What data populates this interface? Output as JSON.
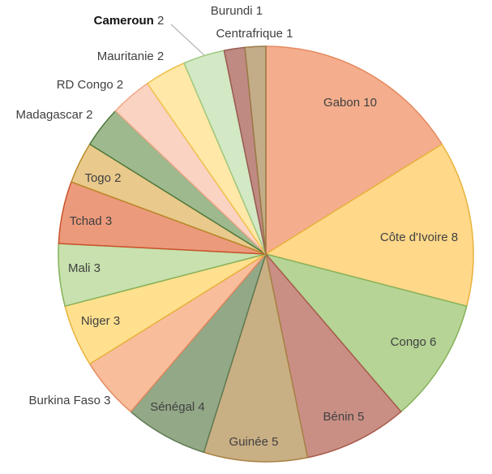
{
  "chart_data": {
    "type": "pie",
    "title": "",
    "start_angle_deg": 0,
    "direction": "clockwise",
    "slices": [
      {
        "label": "Gabon",
        "value": 10,
        "display": "10",
        "color": "#F4AE8E",
        "stroke": "#E58A5E"
      },
      {
        "label": "Côte d'Ivoire",
        "value": 8,
        "display": "8",
        "color": "#FFD88A",
        "stroke": "#E9B23C"
      },
      {
        "label": "Congo",
        "value": 6,
        "display": "6",
        "color": "#B5D495",
        "stroke": "#86B15A"
      },
      {
        "label": "Bénin",
        "value": 5,
        "display": "5",
        "color": "#C98F85",
        "stroke": "#A85A4A"
      },
      {
        "label": "Guinée",
        "value": 5,
        "display": "5",
        "color": "#C9AF84",
        "stroke": "#A88244"
      },
      {
        "label": "Sénégal",
        "value": 4,
        "display": "4",
        "color": "#93A887",
        "stroke": "#5E7A52"
      },
      {
        "label": "Burkina Faso",
        "value": 3,
        "display": "3",
        "color": "#F8BE9C",
        "stroke": "#E58A5E"
      },
      {
        "label": "Niger",
        "value": 3,
        "display": "3",
        "color": "#FFE08F",
        "stroke": "#E9B23C"
      },
      {
        "label": "Mali",
        "value": 3,
        "display": "3",
        "color": "#C8E1AE",
        "stroke": "#86B15A"
      },
      {
        "label": "Tchad",
        "value": 3,
        "display": "3",
        "color": "#EC9A7C",
        "stroke": "#C9522A"
      },
      {
        "label": "Togo",
        "value": 2,
        "display": "2",
        "color": "#E9C98C",
        "stroke": "#B98A2A"
      },
      {
        "label": "Madagascar",
        "value": 2,
        "display": "2",
        "color": "#9FB98F",
        "stroke": "#4F7A3C"
      },
      {
        "label": "RD Congo",
        "value": 2,
        "display": "2",
        "color": "#FAD3C2",
        "stroke": "#F0A888"
      },
      {
        "label": "Mauritanie",
        "value": 2,
        "display": "2",
        "color": "#FFE8A8",
        "stroke": "#F0C24C"
      },
      {
        "label": "Cameroun",
        "value": 2,
        "display": "2",
        "color": "#D3E8C4",
        "stroke": "#9DC97E"
      },
      {
        "label": "Burundi",
        "value": 1,
        "display": "1",
        "color": "#BE8A82",
        "stroke": "#9A5A52"
      },
      {
        "label": "Centrafrique",
        "value": 1,
        "display": "1",
        "color": "#C3AC88",
        "stroke": "#9A7A44"
      }
    ]
  }
}
